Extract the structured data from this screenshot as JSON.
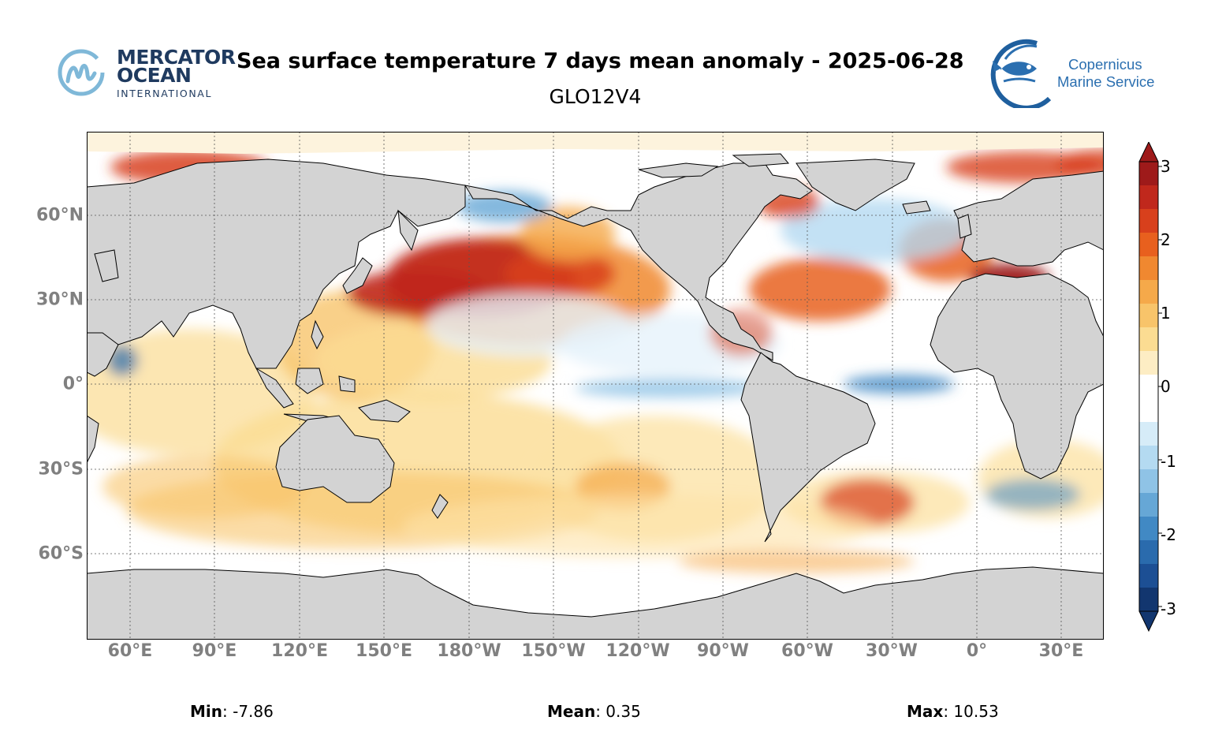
{
  "header": {
    "title": "Sea surface temperature 7 days mean anomaly - 2025-06-28",
    "subtitle": "GLO12V4"
  },
  "logos": {
    "mercator": {
      "line1": "MERCATOR",
      "line2": "OCEAN",
      "line3": "INTERNATIONAL",
      "color": "#1f3a5f",
      "icon": "mercator-m-wave-icon"
    },
    "copernicus": {
      "line1": "Copernicus",
      "line2": "Marine Service",
      "color": "#2b6fb0",
      "icon": "fish-icon"
    }
  },
  "map": {
    "projection": "equirectangular, centered near 150°W",
    "land_color": "#d3d3d3",
    "grid": true,
    "lon_ticks": [
      "60°E",
      "90°E",
      "120°E",
      "150°E",
      "180°W",
      "150°W",
      "120°W",
      "90°W",
      "60°W",
      "30°W",
      "0°",
      "30°E"
    ],
    "lat_ticks": [
      "60°N",
      "30°N",
      "0°",
      "30°S",
      "60°S"
    ]
  },
  "colorbar": {
    "min": -3,
    "max": 3,
    "ticks": [
      "3",
      "2",
      "1",
      "0",
      "-1",
      "-2",
      "-3"
    ],
    "colors": [
      "#9e1a1a",
      "#c0281c",
      "#d8401c",
      "#e8601e",
      "#f08830",
      "#f5a94a",
      "#f8c46a",
      "#fbdc92",
      "#fdedc4",
      "#ffffff",
      "#ffffff",
      "#d6ecf8",
      "#b4daf1",
      "#8fc3e6",
      "#66a7d6",
      "#4189c4",
      "#2a6bad",
      "#1c4f94",
      "#12366f"
    ]
  },
  "stats": {
    "min_label": "Min",
    "min_value": ": -7.86",
    "mean_label": "Mean",
    "mean_value": ": 0.35",
    "max_label": "Max",
    "max_value": ": 10.53"
  }
}
